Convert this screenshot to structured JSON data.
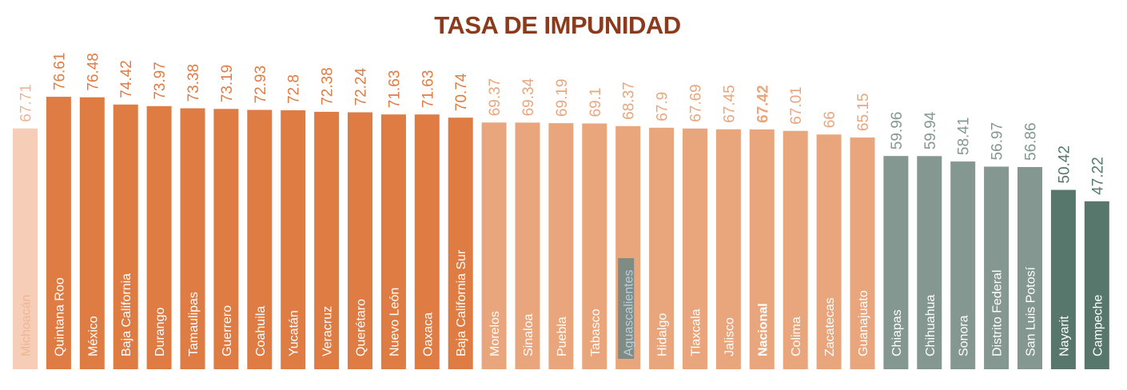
{
  "chart_data": {
    "type": "bar",
    "title": "TASA DE IMPUNIDAD",
    "xlabel": "",
    "ylabel": "",
    "categories": [
      "Michoacán",
      "Quintana Roo",
      "México",
      "Baja California",
      "Durango",
      "Tamaulipas",
      "Guerrero",
      "Coahuila",
      "Yucatán",
      "Veracruz",
      "Querétaro",
      "Nuevo León",
      "Oaxaca",
      "Baja California Sur",
      "Morelos",
      "Sinaloa",
      "Puebla",
      "Tabasco",
      "Aguascalientes",
      "Hidalgo",
      "Tlaxcala",
      "Jalisco",
      "Nacional",
      "Colima",
      "Zacatecas",
      "Guanajuato",
      "Chiapas",
      "Chihuahua",
      "Sonora",
      "Distrito Federal",
      "San Luis Potosí",
      "Nayarit",
      "Campeche"
    ],
    "values": [
      67.71,
      76.61,
      76.48,
      74.42,
      73.97,
      73.38,
      73.19,
      72.93,
      72.8,
      72.38,
      72.24,
      71.63,
      71.63,
      70.74,
      69.37,
      69.34,
      69.19,
      69.1,
      68.37,
      67.9,
      67.69,
      67.45,
      67.42,
      67.01,
      66,
      65.15,
      59.96,
      59.94,
      58.41,
      56.97,
      56.86,
      50.42,
      47.22
    ],
    "value_labels": [
      "67.71",
      "76.61",
      "76.48",
      "74.42",
      "73.97",
      "73.38",
      "73.19",
      "72.93",
      "72.8",
      "72.38",
      "72.24",
      "71.63",
      "71.63",
      "70.74",
      "69.37",
      "69.34",
      "69.19",
      "69.1",
      "68.37",
      "67.9",
      "67.69",
      "67.45",
      "67.42",
      "67.01",
      "66",
      "65.15",
      "59.96",
      "59.94",
      "58.41",
      "56.97",
      "56.86",
      "50.42",
      "47.22"
    ],
    "bar_groups": [
      "faded",
      "dark-orange",
      "dark-orange",
      "dark-orange",
      "dark-orange",
      "dark-orange",
      "dark-orange",
      "dark-orange",
      "dark-orange",
      "dark-orange",
      "dark-orange",
      "dark-orange",
      "dark-orange",
      "dark-orange",
      "light-orange",
      "light-orange",
      "light-orange",
      "light-orange",
      "light-orange",
      "light-orange",
      "light-orange",
      "light-orange",
      "light-orange",
      "light-orange",
      "light-orange",
      "light-orange",
      "gray",
      "gray",
      "gray",
      "gray",
      "gray",
      "dark-green",
      "dark-green"
    ],
    "highlight": "Nacional",
    "colors": {
      "title": "#8b3a1c",
      "faded": "#f6cdb7",
      "faded_text": "#efb595",
      "dark-orange": "#df7c44",
      "dark-orange_text": "#df7c44",
      "light-orange": "#e9a67d",
      "light-orange_text": "#e9a67d",
      "gray": "#849791",
      "gray_text": "#849791",
      "dark-green": "#57776c",
      "dark-green_text": "#57776c",
      "aguascalientes_label_bg": "#7f8c86",
      "aguascalientes_label_text": "#b7cfe0"
    },
    "grid": false,
    "legend": "none",
    "ylim": [
      0,
      80
    ]
  }
}
